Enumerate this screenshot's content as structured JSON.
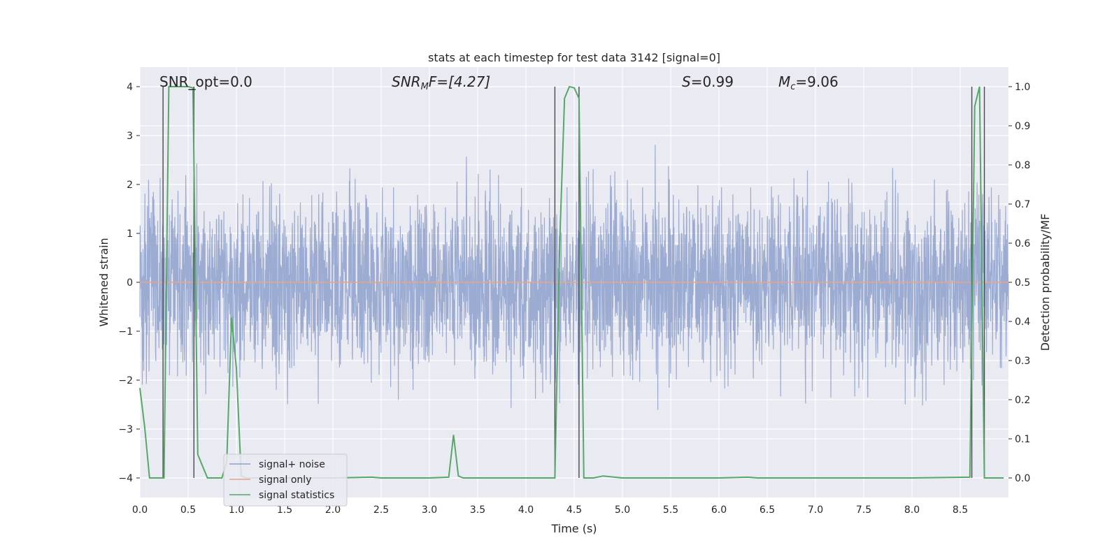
{
  "chart_data": {
    "type": "line",
    "title": "stats at each timestep for test data 3142 [signal=0]",
    "xlabel": "Time (s)",
    "ylabel_left": "Whitened strain",
    "ylabel_right": "Detection probability/MF",
    "xlim": [
      0.0,
      9.0
    ],
    "ylim_left": [
      -4.4,
      4.4
    ],
    "ylim_right": [
      -0.05,
      1.05
    ],
    "x_ticks": [
      0.0,
      0.5,
      1.0,
      1.5,
      2.0,
      2.5,
      3.0,
      3.5,
      4.0,
      4.5,
      5.0,
      5.5,
      6.0,
      6.5,
      7.0,
      7.5,
      8.0,
      8.5
    ],
    "x_tick_labels": [
      "0.0",
      "0.5",
      "1.0",
      "1.5",
      "2.0",
      "2.5",
      "3.0",
      "3.5",
      "4.0",
      "4.5",
      "5.0",
      "5.5",
      "6.0",
      "6.5",
      "7.0",
      "7.5",
      "8.0",
      "8.5"
    ],
    "y_left_ticks": [
      -4,
      -3,
      -2,
      -1,
      0,
      1,
      2,
      3,
      4
    ],
    "y_left_tick_labels": [
      "−4",
      "−3",
      "−2",
      "−1",
      "0",
      "1",
      "2",
      "3",
      "4"
    ],
    "y_right_ticks": [
      0.0,
      0.1,
      0.2,
      0.3,
      0.4,
      0.5,
      0.6,
      0.7,
      0.8,
      0.9,
      1.0
    ],
    "y_right_tick_labels": [
      "0.0",
      "0.1",
      "0.2",
      "0.3",
      "0.4",
      "0.5",
      "0.6",
      "0.7",
      "0.8",
      "0.9",
      "1.0"
    ],
    "grid": true,
    "legend_position": "lower-left",
    "annotations": {
      "snr_opt": "SNR_opt=0.0",
      "snr_mf_name": "SNR",
      "snr_mf_sub": "M",
      "snr_mf_rest": "F=[4.27]",
      "s_name": "S",
      "s_rest": "=0.99",
      "mc_name": "M",
      "mc_sub": "c",
      "mc_rest": "=9.06"
    },
    "series": [
      {
        "name": "signal+ noise",
        "color": "#8da0cb",
        "axis": "left",
        "style": "noise",
        "description_value_range": [
          -4.0,
          4.0
        ]
      },
      {
        "name": "signal only",
        "color": "#e5a58a",
        "axis": "left",
        "x": [
          0.0,
          9.0
        ],
        "values": [
          0.0,
          0.0
        ]
      },
      {
        "name": "signal statistics",
        "color": "#55a868",
        "axis": "right",
        "x": [
          0.0,
          0.05,
          0.1,
          0.25,
          0.3,
          0.35,
          0.4,
          0.45,
          0.5,
          0.55,
          0.6,
          0.65,
          0.7,
          0.75,
          0.85,
          0.9,
          0.95,
          1.0,
          1.05,
          1.1,
          1.5,
          2.0,
          2.4,
          2.5,
          3.0,
          3.2,
          3.25,
          3.3,
          3.35,
          3.5,
          4.0,
          4.3,
          4.35,
          4.4,
          4.45,
          4.5,
          4.55,
          4.6,
          4.7,
          4.8,
          5.0,
          6.0,
          6.3,
          6.4,
          7.0,
          8.0,
          8.6,
          8.65,
          8.7,
          8.75,
          8.8,
          8.85,
          8.9,
          8.95
        ],
        "values": [
          0.23,
          0.13,
          0.0,
          0.0,
          1.0,
          1.0,
          1.0,
          1.0,
          1.0,
          0.997,
          0.06,
          0.03,
          0.0,
          0.0,
          0.0,
          0.04,
          0.41,
          0.28,
          0.005,
          0.0,
          0.0,
          0.0,
          0.002,
          0.0,
          0.0,
          0.002,
          0.11,
          0.005,
          0.0,
          0.0,
          0.0,
          0.0,
          0.6,
          0.97,
          1.0,
          0.997,
          0.97,
          0.0,
          0.0,
          0.005,
          0.0,
          0.0,
          0.002,
          0.0,
          0.0,
          0.0,
          0.002,
          0.95,
          1.0,
          0.0,
          0.0,
          0.0,
          0.0,
          0.0
        ]
      }
    ],
    "vertical_markers_x": [
      0.24,
      0.56,
      4.3,
      4.55,
      8.62,
      8.75
    ]
  }
}
